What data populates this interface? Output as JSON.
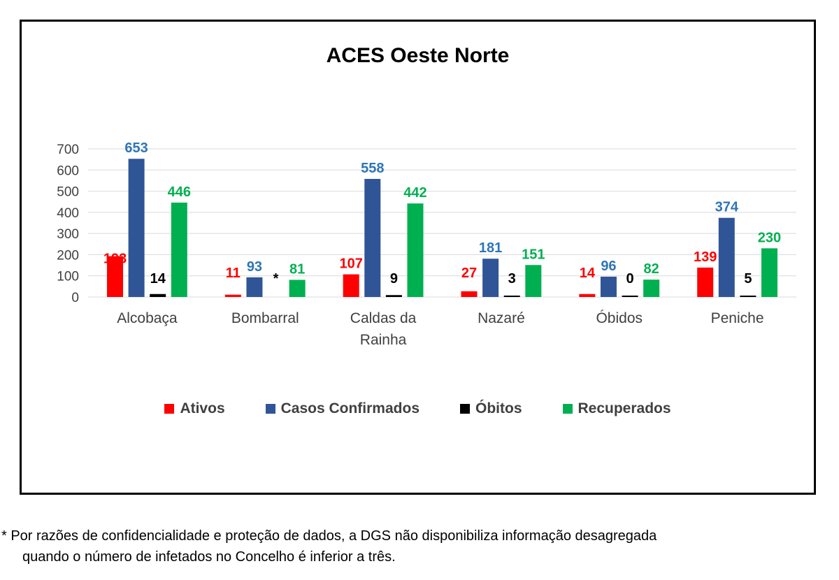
{
  "colors": {
    "ativos": "#ff0000",
    "confirmados": "#2f5597",
    "obitos": "#000000",
    "recuperados": "#00b050",
    "confirmados_label": "#2e75b6",
    "grid": "#d9d9d9",
    "axis_text": "#404040"
  },
  "chart_data": {
    "type": "bar",
    "title": "ACES Oeste Norte",
    "categories": [
      "Alcobaça",
      "Bombarral",
      "Caldas da Rainha",
      "Nazaré",
      "Óbidos",
      "Peniche"
    ],
    "category_lines": [
      [
        "Alcobaça"
      ],
      [
        "Bombarral"
      ],
      [
        "Caldas da",
        "Rainha"
      ],
      [
        "Nazaré"
      ],
      [
        "Óbidos"
      ],
      [
        "Peniche"
      ]
    ],
    "ylim": [
      0,
      700
    ],
    "yticks": [
      0,
      100,
      200,
      300,
      400,
      500,
      600,
      700
    ],
    "grid": true,
    "legend_position": "bottom",
    "series": [
      {
        "name": "Ativos",
        "key": "ativos",
        "values": [
          193,
          11,
          107,
          27,
          14,
          139
        ],
        "labels": [
          "193",
          "11",
          "107",
          "27",
          "14",
          "139"
        ]
      },
      {
        "name": "Casos Confirmados",
        "key": "confirmados",
        "values": [
          653,
          93,
          558,
          181,
          96,
          374
        ],
        "labels": [
          "653",
          "93",
          "558",
          "181",
          "96",
          "374"
        ]
      },
      {
        "name": "Óbitos",
        "key": "obitos",
        "values": [
          14,
          null,
          9,
          3,
          0,
          5
        ],
        "labels": [
          "14",
          "*",
          "9",
          "3",
          "0",
          "5"
        ]
      },
      {
        "name": "Recuperados",
        "key": "recuperados",
        "values": [
          446,
          81,
          442,
          151,
          82,
          230
        ],
        "labels": [
          "446",
          "81",
          "442",
          "151",
          "82",
          "230"
        ]
      }
    ]
  },
  "footnote": {
    "line1": "* Por razões de confidencialidade e proteção de dados, a DGS não disponibiliza informação desagregada",
    "line2": "quando o número de infetados no Concelho é inferior a três."
  }
}
